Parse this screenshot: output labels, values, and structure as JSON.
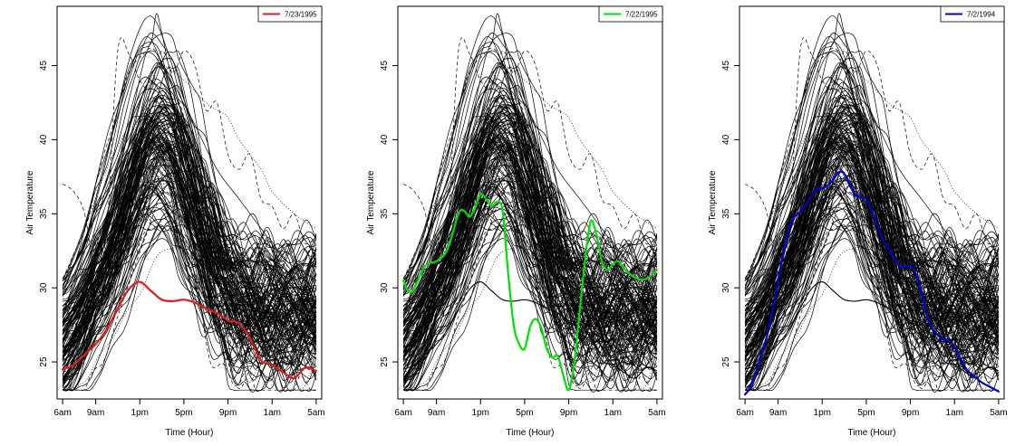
{
  "chart_data": [
    {
      "type": "line",
      "xlabel": "Time (Hour)",
      "ylabel": "Air Temperature",
      "x_ticks": [
        "6am",
        "9am",
        "1pm",
        "5pm",
        "9pm",
        "1am",
        "5am"
      ],
      "x_tick_hours": [
        0,
        3,
        7,
        11,
        15,
        19,
        23
      ],
      "xlim": [
        -0.5,
        23.5
      ],
      "ylim": [
        22.5,
        49
      ],
      "y_ticks": [
        25,
        30,
        35,
        40,
        45
      ],
      "background_curves": "several hundred daily air-temperature curves drawn in black (solid, dashed and dotted), peaking near 45-48 at about 3pm",
      "reference_curve": {
        "color": "#000000",
        "x": [
          0,
          1,
          2,
          3,
          4,
          5,
          6,
          7,
          8,
          9,
          10,
          11,
          12,
          13,
          14,
          15,
          16,
          17,
          18,
          19,
          20,
          21,
          22,
          23
        ],
        "y": [
          24.5,
          24.8,
          25.5,
          26.2,
          27.2,
          28.6,
          29.9,
          30.4,
          29.8,
          29.2,
          29.1,
          29.2,
          29.0,
          28.6,
          28.3,
          27.8,
          27.6,
          26.6,
          25.1,
          24.8,
          24.3,
          23.9,
          24.6,
          24.4
        ]
      },
      "series": [
        {
          "name": "7/23/1995",
          "color": "#e31a1c",
          "x": [
            0,
            1,
            2,
            3,
            4,
            5,
            6,
            7,
            8,
            9,
            10,
            11,
            12,
            13,
            14,
            15,
            16,
            17,
            18,
            19,
            20,
            21,
            22,
            23
          ],
          "y": [
            24.5,
            24.8,
            25.5,
            26.2,
            27.2,
            28.6,
            29.9,
            30.4,
            29.8,
            29.2,
            29.1,
            29.2,
            29.0,
            28.6,
            28.3,
            27.8,
            27.6,
            26.6,
            25.1,
            24.8,
            24.3,
            23.9,
            24.6,
            24.4
          ]
        }
      ],
      "legend": {
        "position": "top-right"
      }
    },
    {
      "type": "line",
      "xlabel": "Time (Hour)",
      "ylabel": "Air Temperature",
      "x_ticks": [
        "6am",
        "9am",
        "1pm",
        "5pm",
        "9pm",
        "1am",
        "5am"
      ],
      "x_tick_hours": [
        0,
        3,
        7,
        11,
        15,
        19,
        23
      ],
      "xlim": [
        -0.5,
        23.5
      ],
      "ylim": [
        22.5,
        49
      ],
      "y_ticks": [
        25,
        30,
        35,
        40,
        45
      ],
      "background_curves": "same black daily curves as the first panel",
      "reference_curve": {
        "color": "#000000",
        "x": [
          0,
          1,
          2,
          3,
          4,
          5,
          6,
          7,
          8,
          9,
          10,
          11,
          12,
          13,
          14,
          15,
          16,
          17,
          18,
          19,
          20,
          21,
          22,
          23
        ],
        "y": [
          24.5,
          24.8,
          25.5,
          26.2,
          27.2,
          28.6,
          29.9,
          30.4,
          29.8,
          29.2,
          29.1,
          29.2,
          29.0,
          28.6,
          28.3,
          27.8,
          27.6,
          26.6,
          25.1,
          24.8,
          24.3,
          23.9,
          24.6,
          24.4
        ]
      },
      "series": [
        {
          "name": "7/22/1995",
          "color": "#00e000",
          "x": [
            0,
            0.5,
            1,
            2,
            3,
            4,
            5,
            5.5,
            6,
            6.5,
            7,
            7.5,
            8,
            8.5,
            9,
            9.5,
            10,
            10.5,
            11,
            11.5,
            12,
            12.5,
            13,
            13.5,
            14,
            14.5,
            15,
            15.5,
            16,
            16.5,
            17,
            17.5,
            18,
            18.5,
            19,
            19.5,
            20,
            21,
            22,
            23
          ],
          "y": [
            30.5,
            29.7,
            30.0,
            31.5,
            31.8,
            32.6,
            35.0,
            35.2,
            34.8,
            35.4,
            36.3,
            36.0,
            35.5,
            35.8,
            35.2,
            31.0,
            27.5,
            26.2,
            25.9,
            27.4,
            27.9,
            27.3,
            25.9,
            25.3,
            25.4,
            24.1,
            23.1,
            25.0,
            28.5,
            32.0,
            34.5,
            33.6,
            31.8,
            31.2,
            31.6,
            31.8,
            31.3,
            30.7,
            30.6,
            31.2
          ]
        }
      ],
      "legend": {
        "position": "top-right"
      }
    },
    {
      "type": "line",
      "xlabel": "Time (Hour)",
      "ylabel": "Air Temperature",
      "x_ticks": [
        "6am",
        "9am",
        "1pm",
        "5pm",
        "9pm",
        "1am",
        "5am"
      ],
      "x_tick_hours": [
        0,
        3,
        7,
        11,
        15,
        19,
        23
      ],
      "xlim": [
        -0.5,
        23.5
      ],
      "ylim": [
        22.5,
        49
      ],
      "y_ticks": [
        25,
        30,
        35,
        40,
        45
      ],
      "background_curves": "same black daily curves as the first panel",
      "reference_curve": {
        "color": "#000000",
        "x": [
          0,
          1,
          2,
          3,
          4,
          5,
          6,
          7,
          8,
          9,
          10,
          11,
          12,
          13,
          14,
          15,
          16,
          17,
          18,
          19,
          20,
          21,
          22,
          23
        ],
        "y": [
          24.5,
          24.8,
          25.5,
          26.2,
          27.2,
          28.6,
          29.9,
          30.4,
          29.8,
          29.2,
          29.1,
          29.2,
          29.0,
          28.6,
          28.3,
          27.8,
          27.6,
          26.6,
          25.1,
          24.8,
          24.3,
          23.9,
          24.6,
          24.4
        ]
      },
      "series": [
        {
          "name": "7/2/1994",
          "color": "#0000cc",
          "x": [
            0,
            0.5,
            1,
            1.5,
            2,
            2.5,
            3,
            3.5,
            4,
            4.5,
            5,
            5.5,
            6,
            6.5,
            7,
            7.5,
            8,
            8.5,
            9,
            9.5,
            10,
            10.5,
            11,
            11.5,
            12,
            12.5,
            13,
            13.5,
            14,
            14.5,
            15,
            15.5,
            16,
            16.5,
            17,
            17.5,
            18,
            18.5,
            19,
            19.5,
            20,
            20.5,
            21,
            21.5,
            22,
            22.5,
            23
          ],
          "y": [
            22.8,
            23.3,
            24.3,
            25.6,
            26.8,
            28.5,
            30.5,
            32.5,
            34.0,
            34.8,
            35.1,
            35.6,
            36.2,
            36.7,
            36.7,
            36.9,
            37.3,
            37.8,
            37.7,
            36.9,
            36.3,
            36.1,
            36.0,
            35.2,
            34.2,
            33.3,
            32.6,
            32.0,
            31.5,
            31.4,
            31.5,
            30.9,
            29.6,
            28.1,
            27.3,
            26.8,
            26.5,
            26.5,
            26.0,
            25.3,
            24.6,
            24.2,
            23.9,
            23.6,
            23.4,
            23.2,
            23.0
          ]
        }
      ],
      "legend": {
        "position": "top-right"
      }
    }
  ]
}
